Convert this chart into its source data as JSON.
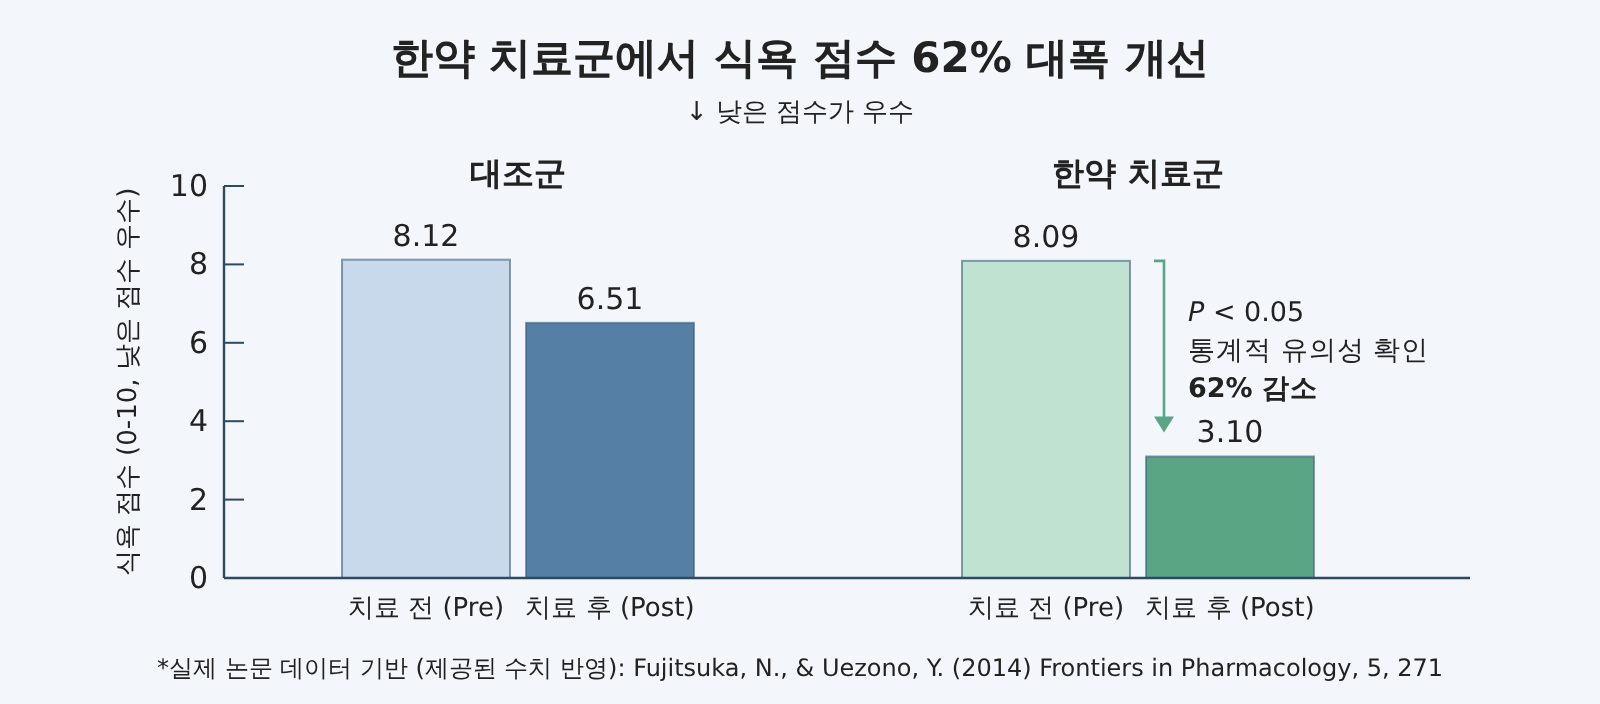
{
  "chart_data": {
    "type": "bar",
    "title": "한약 치료군에서 식욕 점수 62% 대폭 개선",
    "subtitle": "↓ 낮은 점수가 우수",
    "ylabel": "식욕 점수 (0-10, 낮은 점수 우수)",
    "categories": [
      "치료 전 (Pre)",
      "치료 후 (Post)",
      "치료 전 (Pre)",
      "치료 후 (Post)"
    ],
    "values": [
      8.12,
      6.51,
      8.09,
      3.1
    ],
    "colors": [
      "#c9d9ec",
      "#567fa6",
      "#bfe3d0",
      "#5aa584"
    ],
    "value_labels": [
      "8.12",
      "6.51",
      "8.09",
      "3.10"
    ],
    "ylim": [
      0,
      10
    ],
    "yticks": [
      0,
      2,
      4,
      6,
      8,
      10
    ],
    "grid": false,
    "annotations": [
      "대조군",
      "한약 치료군",
      "*P* < 0.05\n통계적 유의성 확인\n**62% 감소**",
      "*실제 논문 데이터 기반 (제공된 수치 반영): Fujitsuka, N., & Uezono, Y. (2014) Frontiers in Pharmacology, 5, 271"
    ]
  }
}
